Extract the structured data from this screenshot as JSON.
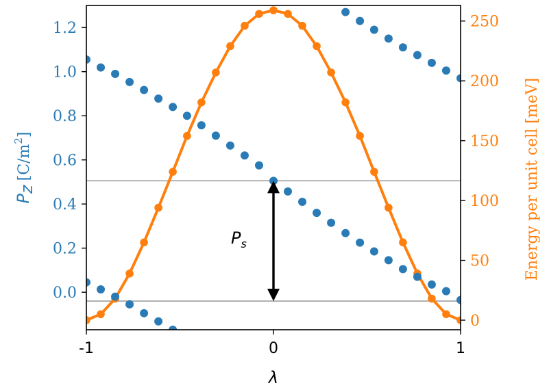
{
  "chart_data": {
    "type": "scatter+line",
    "x_axis": {
      "label": "λ",
      "lim": [
        -1,
        1
      ],
      "ticks": [
        -1,
        0,
        1
      ],
      "tick_labels": [
        "-1",
        "0",
        "1"
      ]
    },
    "y_left": {
      "label_main": "P",
      "label_sub": "z",
      "label_unit_base": "[C/m",
      "label_unit_sup": "2",
      "label_unit_end": "]",
      "color": "#2a7bb5",
      "lim": [
        -0.17,
        1.3
      ],
      "ticks": [
        0.0,
        0.2,
        0.4,
        0.6,
        0.8,
        1.0,
        1.2
      ],
      "tick_labels": [
        "0.0",
        "0.2",
        "0.4",
        "0.6",
        "0.8",
        "1.0",
        "1.2"
      ]
    },
    "y_right": {
      "label": "Energy per unit cell [meV]",
      "color": "#ff7f0e",
      "lim": [
        -8,
        263
      ],
      "ticks": [
        0,
        50,
        100,
        150,
        200,
        250
      ],
      "tick_labels": [
        "0",
        "50",
        "100",
        "150",
        "200",
        "250"
      ]
    },
    "polarization_series": [
      {
        "x": [
          -1.0,
          -0.923,
          -0.846,
          -0.769,
          -0.692,
          -0.615,
          -0.538,
          -0.462,
          -0.385,
          -0.308,
          -0.231,
          -0.154,
          -0.077,
          0.0,
          0.077,
          0.154,
          0.231,
          0.308,
          0.385,
          0.462,
          0.538,
          0.615,
          0.692,
          0.769,
          0.846,
          0.923,
          1.0
        ],
        "y": [
          1.055,
          1.019,
          0.99,
          0.953,
          0.917,
          0.878,
          0.84,
          0.8,
          0.757,
          0.71,
          0.665,
          0.62,
          0.575,
          0.505,
          0.457,
          0.41,
          0.36,
          0.315,
          0.268,
          0.225,
          0.185,
          0.145,
          0.105,
          0.07,
          0.035,
          0.005,
          -0.035
        ]
      },
      {
        "x": [
          -1.0,
          -0.923,
          -0.846,
          -0.769,
          -0.692,
          -0.615,
          -0.538
        ],
        "y": [
          0.045,
          0.013,
          -0.02,
          -0.055,
          -0.095,
          -0.132,
          -0.17
        ]
      },
      {
        "x": [
          0.385,
          0.462,
          0.538,
          0.615,
          0.692,
          0.769,
          0.846,
          0.923,
          1.0
        ],
        "y": [
          1.27,
          1.23,
          1.19,
          1.15,
          1.11,
          1.075,
          1.04,
          1.005,
          0.97
        ]
      }
    ],
    "energy_series": {
      "x": [
        -1.0,
        -0.923,
        -0.846,
        -0.769,
        -0.692,
        -0.615,
        -0.538,
        -0.462,
        -0.385,
        -0.308,
        -0.231,
        -0.154,
        -0.077,
        0.0,
        0.077,
        0.154,
        0.231,
        0.308,
        0.385,
        0.462,
        0.538,
        0.615,
        0.692,
        0.769,
        0.846,
        0.923,
        1.0
      ],
      "y": [
        0,
        5,
        18,
        39,
        65,
        94,
        124,
        154,
        182,
        207,
        229,
        246,
        256,
        259,
        256,
        246,
        229,
        207,
        182,
        154,
        124,
        94,
        65,
        39,
        18,
        5,
        0
      ]
    },
    "reference_lines_y": [
      0.505,
      -0.04
    ],
    "annotation": {
      "text_main": "P",
      "text_sub": "s",
      "arrow_x": 0,
      "arrow_from": -0.04,
      "arrow_to": 0.505
    }
  }
}
